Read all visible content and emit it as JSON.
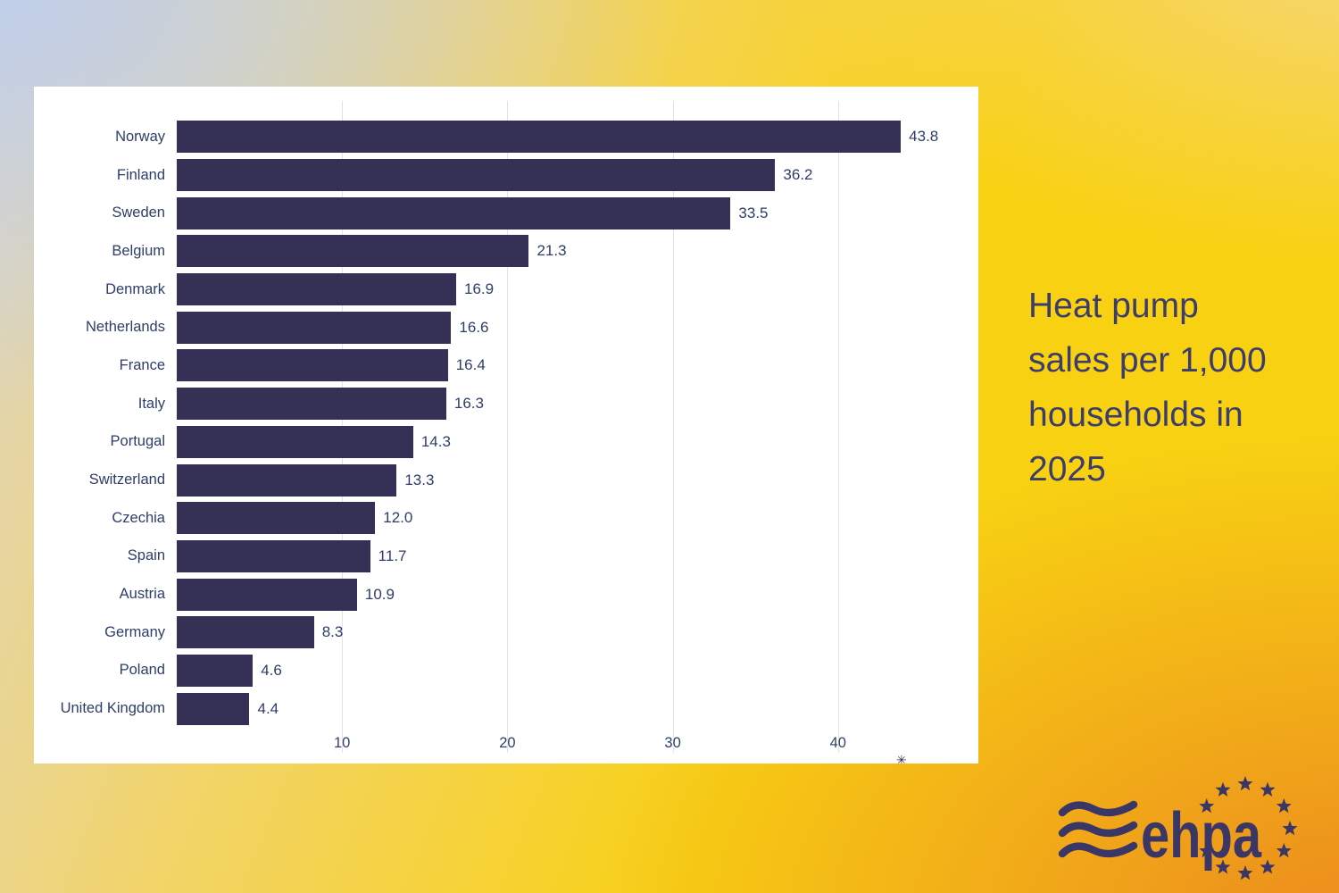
{
  "title": {
    "text": "Heat pump sales per 1,000 households in 2025",
    "lines": [
      "Heat pump",
      "sales per 1,000",
      "households in",
      "2025"
    ]
  },
  "chart_data": {
    "type": "bar",
    "orientation": "horizontal",
    "title": "Heat pump sales per 1,000 households in 2025",
    "categories": [
      "Norway",
      "Finland",
      "Sweden",
      "Belgium",
      "Denmark",
      "Netherlands",
      "France",
      "Italy",
      "Portugal",
      "Switzerland",
      "Czechia",
      "Spain",
      "Austria",
      "Germany",
      "Poland",
      "United Kingdom"
    ],
    "values": [
      43.8,
      36.2,
      33.5,
      21.3,
      16.9,
      16.6,
      16.4,
      16.3,
      14.3,
      13.3,
      12.0,
      11.7,
      10.9,
      8.3,
      4.6,
      4.4
    ],
    "value_decimals": 1,
    "xlabel": "",
    "ylabel": "",
    "xlim": [
      0,
      47.3
    ],
    "x_ticks": [
      10,
      20,
      30,
      40
    ],
    "grid": true,
    "legend": false,
    "bar_color": "#343056",
    "label_color": "#2e3d69",
    "tick_color": "#31406b",
    "grid_color": "#e3e3e3"
  },
  "watermark_glyph": "✳",
  "logo": {
    "wordmark": "ehpa",
    "color": "#3a3766",
    "star_count": 11,
    "parts": [
      "waves-icon",
      "ehpa-wordmark",
      "euro-star-circle-icon"
    ]
  },
  "colors": {
    "card_background": "#ffffff",
    "background_top_left": "#c1cfe9",
    "background_top_right": "#f6d77e",
    "background_yellow": "#f8d113",
    "background_bottom_right": "#ec8a1d",
    "title_text": "#3d3d6b"
  }
}
